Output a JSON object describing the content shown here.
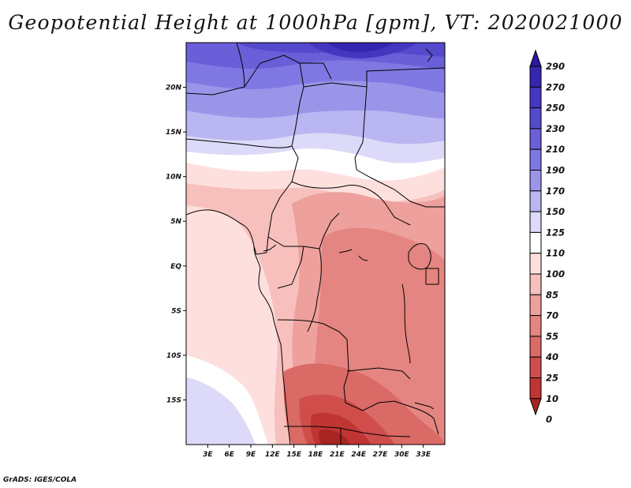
{
  "title": "Geopotential Height at 1000hPa [gpm], VT: 2020021000",
  "credit": "GrADS: IGES/COLA",
  "map": {
    "lon_range": [
      0,
      36
    ],
    "lat_range": [
      -20,
      25
    ],
    "lon_ticks": [
      {
        "value": 3,
        "label": "3E"
      },
      {
        "value": 6,
        "label": "6E"
      },
      {
        "value": 9,
        "label": "9E"
      },
      {
        "value": 12,
        "label": "12E"
      },
      {
        "value": 15,
        "label": "15E"
      },
      {
        "value": 18,
        "label": "18E"
      },
      {
        "value": 21,
        "label": "21E"
      },
      {
        "value": 24,
        "label": "24E"
      },
      {
        "value": 27,
        "label": "27E"
      },
      {
        "value": 30,
        "label": "30E"
      },
      {
        "value": 33,
        "label": "33E"
      }
    ],
    "lat_ticks": [
      {
        "value": 20,
        "label": "20N"
      },
      {
        "value": 15,
        "label": "15N"
      },
      {
        "value": 10,
        "label": "10N"
      },
      {
        "value": 5,
        "label": "5N"
      },
      {
        "value": 0,
        "label": "EQ"
      },
      {
        "value": -5,
        "label": "5S"
      },
      {
        "value": -10,
        "label": "10S"
      },
      {
        "value": -15,
        "label": "15S"
      }
    ]
  },
  "colorbar": {
    "levels": [
      {
        "label": "290",
        "color": "#2a1a9e"
      },
      {
        "label": "270",
        "color": "#3526b0"
      },
      {
        "label": "250",
        "color": "#4436c0"
      },
      {
        "label": "230",
        "color": "#5549cc"
      },
      {
        "label": "210",
        "color": "#6a5fd8"
      },
      {
        "label": "190",
        "color": "#8078e2"
      },
      {
        "label": "170",
        "color": "#9b95ea"
      },
      {
        "label": "150",
        "color": "#bab6f2"
      },
      {
        "label": "125",
        "color": "#dcdaf8"
      },
      {
        "label": "110",
        "color": "#ffffff"
      },
      {
        "label": "100",
        "color": "#fde0de"
      },
      {
        "label": "85",
        "color": "#f7c0bd"
      },
      {
        "label": "70",
        "color": "#eea09c"
      },
      {
        "label": "55",
        "color": "#e48581"
      },
      {
        "label": "40",
        "color": "#da6a66"
      },
      {
        "label": "25",
        "color": "#cf4e4b"
      },
      {
        "label": "10",
        "color": "#c03533"
      },
      {
        "label": "0",
        "color": "#a82422"
      }
    ]
  }
}
